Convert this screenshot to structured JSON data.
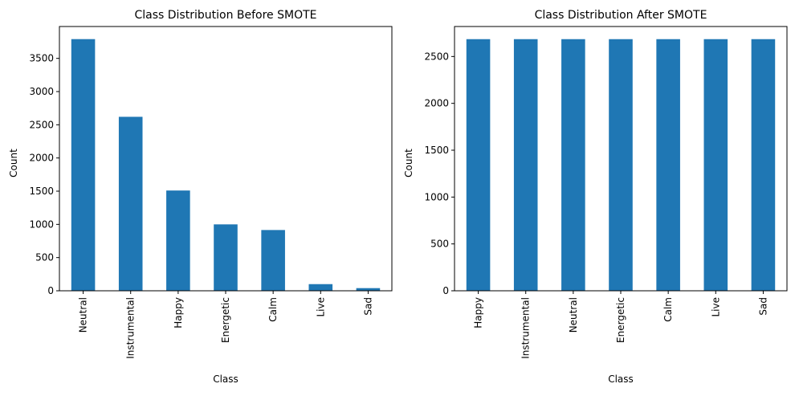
{
  "colors": {
    "bar": "#1f77b4",
    "axis": "#000000",
    "background": "#ffffff"
  },
  "chart_data": [
    {
      "type": "bar",
      "title": "Class Distribution Before SMOTE",
      "xlabel": "Class",
      "ylabel": "Count",
      "categories": [
        "Neutral",
        "Instrumental",
        "Happy",
        "Energetic",
        "Calm",
        "Live",
        "Sad"
      ],
      "values": [
        3790,
        2620,
        1510,
        1000,
        915,
        100,
        40
      ],
      "ylim": [
        0,
        3980
      ],
      "yticks": [
        0,
        500,
        1000,
        1500,
        2000,
        2500,
        3000,
        3500
      ],
      "grid": false,
      "legend": "none"
    },
    {
      "type": "bar",
      "title": "Class Distribution After SMOTE",
      "xlabel": "Class",
      "ylabel": "Count",
      "categories": [
        "Happy",
        "Instrumental",
        "Neutral",
        "Energetic",
        "Calm",
        "Live",
        "Sad"
      ],
      "values": [
        2685,
        2685,
        2685,
        2685,
        2685,
        2685,
        2685
      ],
      "ylim": [
        0,
        2820
      ],
      "yticks": [
        0,
        500,
        1000,
        1500,
        2000,
        2500
      ],
      "grid": false,
      "legend": "none"
    }
  ]
}
